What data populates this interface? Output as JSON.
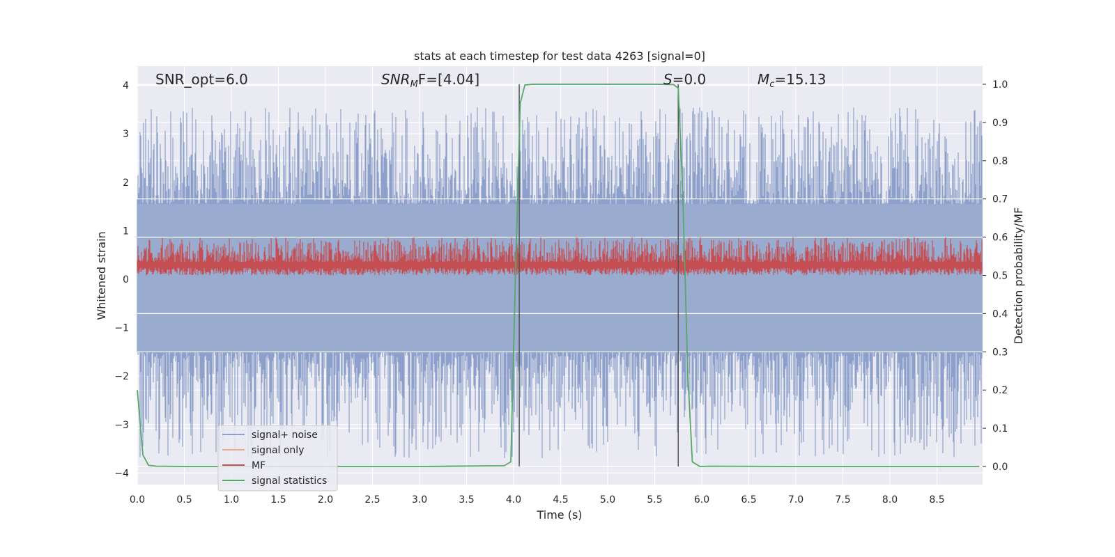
{
  "chart_data": {
    "type": "line",
    "title": "stats at each timestep for test data 4263 [signal=0]",
    "xlabel": "Time (s)",
    "ylabel": "Whitened strain",
    "y2label": "Detection probability/MF",
    "xlim": [
      0.0,
      9.0
    ],
    "ylim": [
      -4.25,
      4.4
    ],
    "y2lim": [
      -0.05,
      1.05
    ],
    "xticks": [
      "0.0",
      "0.5",
      "1.0",
      "1.5",
      "2.0",
      "2.5",
      "3.0",
      "3.5",
      "4.0",
      "4.5",
      "5.0",
      "5.5",
      "6.0",
      "6.5",
      "7.0",
      "7.5",
      "8.0",
      "8.5"
    ],
    "yticks": [
      "4",
      "3",
      "2",
      "1",
      "0",
      "−1",
      "−2",
      "−3",
      "−4"
    ],
    "y2ticks": [
      "1.0",
      "0.9",
      "0.8",
      "0.7",
      "0.6",
      "0.5",
      "0.4",
      "0.3",
      "0.2",
      "0.1",
      "0.0"
    ],
    "annotations": {
      "snr_opt": "SNR_opt=6.0",
      "snr_mf_prefix": "SNR",
      "snr_mf_sub": "M",
      "snr_mf_suffix": "F=[4.04]",
      "s_prefix": "S",
      "s_suffix": "=0.0",
      "mc_prefix": "M",
      "mc_sub": "c",
      "mc_suffix": "=15.13"
    },
    "vlines": [
      4.06,
      5.75
    ],
    "series": [
      {
        "name": "signal+ noise",
        "color": "#8da0cb",
        "description_stats": {
          "approx_range": [
            -3.8,
            3.55
          ],
          "fill_band": [
            -1.5,
            1.6
          ]
        }
      },
      {
        "name": "signal only",
        "color": "#e8a88b"
      },
      {
        "name": "MF",
        "color": "#c44e52",
        "description_stats": {
          "approx_range_right_axis": [
            0.5,
            0.62
          ]
        }
      },
      {
        "name": "signal statistics",
        "color": "#55a868",
        "x": [
          0.0,
          0.06,
          0.12,
          0.2,
          0.5,
          1.0,
          2.0,
          3.0,
          3.9,
          3.97,
          4.02,
          4.07,
          4.12,
          4.2,
          4.5,
          5.0,
          5.5,
          5.7,
          5.75,
          5.8,
          5.85,
          5.9,
          5.98,
          6.1,
          7.0,
          8.0,
          8.95
        ],
        "values": [
          0.2,
          0.03,
          0.003,
          0.001,
          0.0,
          0.0,
          0.0,
          0.0,
          0.002,
          0.012,
          0.5,
          0.95,
          0.998,
          1.0,
          1.0,
          1.0,
          1.0,
          0.999,
          0.99,
          0.7,
          0.25,
          0.012,
          0.0,
          0.001,
          0.0,
          0.0,
          0.0
        ]
      }
    ],
    "legend": [
      "signal+ noise",
      "signal only",
      "MF",
      "signal statistics"
    ],
    "legend_position": "lower-left",
    "grid": true
  }
}
